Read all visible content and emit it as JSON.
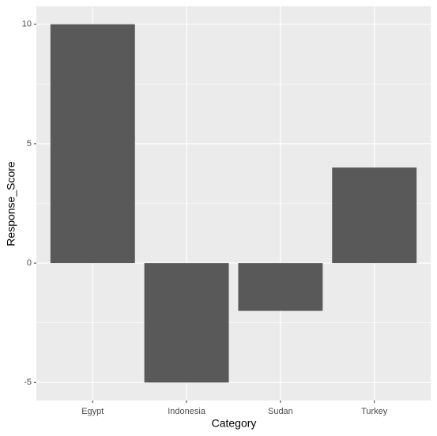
{
  "chart_data": {
    "type": "bar",
    "x_label": "Category",
    "y_label": "Response_Score",
    "categories": [
      "Egypt",
      "Indonesia",
      "Sudan",
      "Turkey"
    ],
    "values": [
      10,
      -5,
      -2,
      4
    ],
    "color": "#595959",
    "ylim": [
      -5.75,
      10.75
    ],
    "yticks": [
      -5,
      0,
      5,
      10
    ],
    "grid": true
  }
}
